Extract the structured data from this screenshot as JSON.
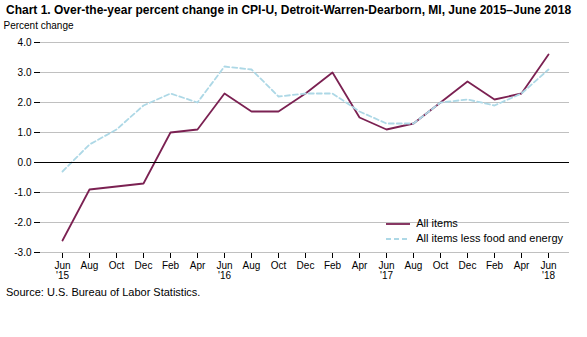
{
  "chart_data": {
    "type": "line",
    "title": "Chart 1. Over-the-year percent change in CPI-U, Detroit-Warren-Dearborn, MI, June 2015–June 2018",
    "source": "Source: U.S. Bureau of Labor Statistics.",
    "y_label": "Percent change",
    "categories": [
      "Jun\n'15",
      "Aug",
      "Oct",
      "Dec",
      "Feb",
      "Apr",
      "Jun\n'16",
      "Aug",
      "Oct",
      "Dec",
      "Feb",
      "Apr",
      "Jun\n'17",
      "Aug",
      "Oct",
      "Dec",
      "Feb",
      "Apr",
      "Jun\n'18"
    ],
    "series": [
      {
        "name": "All items",
        "color": "#7b2152",
        "line_style": "solid",
        "values": [
          -2.6,
          -0.9,
          -0.8,
          -0.7,
          1.0,
          1.1,
          2.3,
          1.7,
          1.7,
          2.3,
          3.0,
          1.5,
          1.1,
          1.3,
          2.0,
          2.7,
          2.1,
          2.3,
          3.6
        ]
      },
      {
        "name": "All items less food and energy",
        "color": "#add8e6",
        "line_style": "dashed",
        "values": [
          -0.3,
          0.6,
          1.1,
          1.9,
          2.3,
          2.0,
          3.2,
          3.1,
          2.2,
          2.3,
          2.3,
          1.7,
          1.3,
          1.3,
          2.0,
          2.1,
          1.9,
          2.3,
          3.1
        ]
      }
    ],
    "ylim": [
      -3.0,
      4.0
    ],
    "yticks": [
      {
        "value": -3.0,
        "label": "-3.0"
      },
      {
        "value": -2.0,
        "label": "-2.0"
      },
      {
        "value": -1.0,
        "label": "-1.0"
      },
      {
        "value": 0.0,
        "label": "0.0"
      },
      {
        "value": 1.0,
        "label": "1.0"
      },
      {
        "value": 2.0,
        "label": "2.0"
      },
      {
        "value": 3.0,
        "label": "3.0"
      },
      {
        "value": 4.0,
        "label": "4.0"
      }
    ],
    "grid": true,
    "legend": "lower right"
  }
}
